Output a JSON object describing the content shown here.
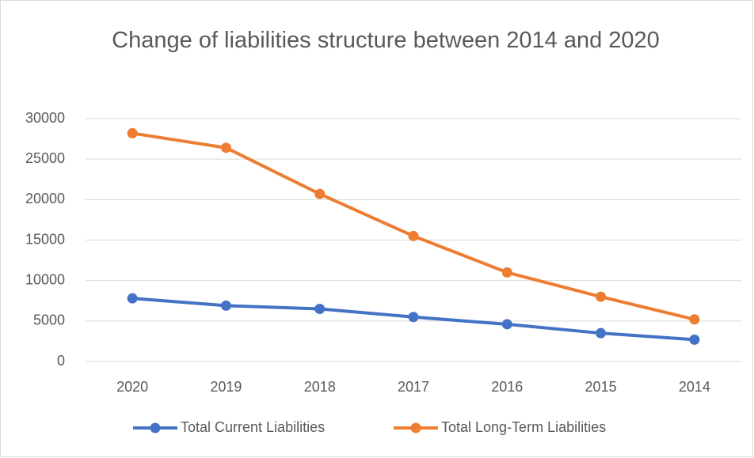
{
  "chart_data": {
    "type": "line",
    "title": "Change of liabilities structure between 2014 and 2020",
    "categories": [
      "2020",
      "2019",
      "2018",
      "2017",
      "2016",
      "2015",
      "2014"
    ],
    "series": [
      {
        "name": "Total Current Liabilities",
        "color": "#4472c4",
        "values": [
          7800,
          6900,
          6500,
          5500,
          4600,
          3500,
          2700
        ]
      },
      {
        "name": "Total Long-Term Liabilities",
        "color": "#ed7d31",
        "values": [
          28200,
          26400,
          20700,
          15500,
          11000,
          8000,
          5200
        ]
      }
    ],
    "ylim": [
      0,
      30000
    ],
    "yticks": [
      0,
      5000,
      10000,
      15000,
      20000,
      25000,
      30000
    ],
    "grid": true,
    "legend": "bottom"
  }
}
